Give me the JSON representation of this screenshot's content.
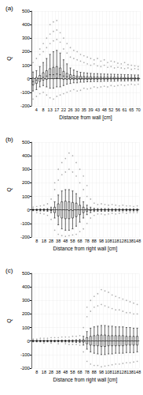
{
  "chart_data": [
    {
      "type": "boxplot",
      "title": "(a)",
      "x_label": "Distance from wall [cm]",
      "y_label": "Q",
      "categories": [
        null,
        "4",
        null,
        "8",
        null,
        "13",
        null,
        "17",
        null,
        "22",
        null,
        "26",
        null,
        "30",
        null,
        "35",
        null,
        "39",
        null,
        "43",
        null,
        "48",
        null,
        "52",
        null,
        "56",
        null,
        "61",
        null,
        "65",
        null,
        "70"
      ],
      "values": [
        [
          -90,
          -45,
          -20,
          5,
          50
        ],
        [
          -80,
          -35,
          -10,
          10,
          60
        ],
        [
          -60,
          -20,
          0,
          25,
          90
        ],
        [
          -50,
          -10,
          10,
          45,
          120
        ],
        [
          -60,
          -5,
          20,
          60,
          150
        ],
        [
          -70,
          0,
          30,
          75,
          180
        ],
        [
          -70,
          0,
          30,
          85,
          200
        ],
        [
          -60,
          5,
          35,
          90,
          210
        ],
        [
          -60,
          0,
          30,
          80,
          190
        ],
        [
          -50,
          -5,
          20,
          55,
          140
        ],
        [
          -40,
          -5,
          15,
          40,
          110
        ],
        [
          -35,
          -5,
          10,
          30,
          80
        ],
        [
          -30,
          -5,
          5,
          25,
          65
        ],
        [
          -30,
          -5,
          5,
          20,
          55
        ],
        [
          -25,
          -5,
          3,
          18,
          48
        ],
        [
          -25,
          -6,
          3,
          17,
          45
        ],
        [
          -22,
          -5,
          2,
          15,
          42
        ],
        [
          -22,
          -5,
          2,
          15,
          40
        ],
        [
          -20,
          -4,
          2,
          14,
          38
        ],
        [
          -20,
          -4,
          2,
          14,
          38
        ],
        [
          -20,
          -4,
          2,
          13,
          36
        ],
        [
          -18,
          -4,
          1,
          12,
          35
        ],
        [
          -18,
          -4,
          1,
          12,
          34
        ],
        [
          -18,
          -3,
          1,
          12,
          34
        ],
        [
          -18,
          -3,
          1,
          12,
          33
        ],
        [
          -16,
          -3,
          1,
          11,
          32
        ],
        [
          -16,
          -3,
          1,
          11,
          32
        ],
        [
          -16,
          -3,
          1,
          10,
          30
        ],
        [
          -15,
          -3,
          1,
          10,
          30
        ],
        [
          -15,
          -3,
          1,
          10,
          29
        ],
        [
          -15,
          -3,
          1,
          10,
          28
        ],
        [
          -14,
          -3,
          1,
          9,
          28
        ]
      ],
      "outliers": [
        [
          120,
          -150
        ],
        [
          150,
          -130
        ],
        [
          180,
          220,
          -110
        ],
        [
          200,
          260,
          -100
        ],
        [
          230,
          300,
          -120
        ],
        [
          260,
          330,
          400,
          -140
        ],
        [
          280,
          350,
          420,
          -150
        ],
        [
          290,
          360,
          430,
          -130
        ],
        [
          270,
          340,
          -120
        ],
        [
          220,
          300,
          -110
        ],
        [
          190,
          260,
          -100
        ],
        [
          160,
          230,
          -90
        ],
        [
          150,
          210,
          -80
        ],
        [
          140,
          200,
          -90
        ],
        [
          130,
          180,
          -85
        ],
        [
          120,
          170,
          -70
        ],
        [
          110,
          160,
          -75
        ],
        [
          100,
          150,
          -70
        ],
        [
          110,
          140,
          -60
        ],
        [
          95,
          150,
          -65
        ],
        [
          90,
          130,
          -60
        ],
        [
          100,
          140,
          -55
        ],
        [
          85,
          120,
          -60
        ],
        [
          90,
          130,
          -50
        ],
        [
          80,
          125,
          -55
        ],
        [
          85,
          115,
          -50
        ],
        [
          80,
          110,
          -45
        ],
        [
          75,
          120,
          -50
        ],
        [
          80,
          105,
          -45
        ],
        [
          70,
          100,
          -40
        ],
        [
          75,
          95,
          -45
        ],
        [
          70,
          90,
          -40
        ]
      ],
      "ylim": [
        -200,
        500
      ],
      "yticks": [
        -200,
        -100,
        0,
        100,
        200,
        300,
        400,
        500
      ],
      "grid": true,
      "color": "#000000"
    },
    {
      "type": "boxplot",
      "title": "(b)",
      "x_label": "Distance from right wall [cm]",
      "y_label": "Q",
      "categories": [
        null,
        "8",
        null,
        "18",
        null,
        "28",
        null,
        "38",
        null,
        "48",
        null,
        "58",
        null,
        "68",
        null,
        "78",
        null,
        "88",
        null,
        "98",
        null,
        "108",
        null,
        "118",
        null,
        "128",
        null,
        "138",
        null,
        "148"
      ],
      "values": [
        [
          -6,
          -1,
          0,
          1,
          6
        ],
        [
          -6,
          -1,
          0,
          1,
          6
        ],
        [
          -8,
          -2,
          0,
          2,
          8
        ],
        [
          -8,
          -2,
          0,
          2,
          8
        ],
        [
          -10,
          -2,
          0,
          2,
          10
        ],
        [
          -20,
          -5,
          0,
          5,
          20
        ],
        [
          -60,
          -20,
          0,
          20,
          60
        ],
        [
          -110,
          -45,
          0,
          45,
          110
        ],
        [
          -140,
          -60,
          0,
          60,
          140
        ],
        [
          -150,
          -65,
          0,
          65,
          150
        ],
        [
          -150,
          -65,
          -5,
          60,
          150
        ],
        [
          -140,
          -60,
          -5,
          55,
          140
        ],
        [
          -120,
          -50,
          0,
          50,
          120
        ],
        [
          -90,
          -35,
          0,
          35,
          90
        ],
        [
          -60,
          -20,
          0,
          20,
          60
        ],
        [
          -35,
          -10,
          0,
          10,
          35
        ],
        [
          -20,
          -5,
          0,
          5,
          20
        ],
        [
          -12,
          -3,
          0,
          3,
          12
        ],
        [
          -10,
          -2,
          0,
          2,
          10
        ],
        [
          -10,
          -2,
          0,
          2,
          10
        ],
        [
          -10,
          -2,
          0,
          2,
          10
        ],
        [
          -10,
          -2,
          0,
          2,
          10
        ],
        [
          -9,
          -2,
          0,
          2,
          9
        ],
        [
          -9,
          -2,
          0,
          2,
          9
        ],
        [
          -9,
          -2,
          0,
          2,
          9
        ],
        [
          -8,
          -2,
          0,
          2,
          8
        ],
        [
          -8,
          -2,
          0,
          2,
          8
        ],
        [
          -8,
          -2,
          0,
          2,
          8
        ],
        [
          -8,
          -2,
          0,
          2,
          8
        ],
        [
          -8,
          -2,
          0,
          2,
          8
        ]
      ],
      "outliers": [
        [
          20
        ],
        [
          25,
          -20
        ],
        [
          30,
          -25
        ],
        [
          35,
          -30
        ],
        [
          45,
          -40
        ],
        [
          80,
          -70
        ],
        [
          150,
          200,
          -150
        ],
        [
          220,
          300,
          -180
        ],
        [
          260,
          350,
          -190
        ],
        [
          280,
          380,
          -195
        ],
        [
          300,
          420,
          -190
        ],
        [
          280,
          400,
          -185
        ],
        [
          250,
          350,
          -180
        ],
        [
          200,
          300,
          -160
        ],
        [
          150,
          250,
          -140
        ],
        [
          100,
          180,
          -100
        ],
        [
          80,
          -60
        ],
        [
          50,
          -40
        ],
        [
          40,
          -30
        ],
        [
          45,
          -30
        ],
        [
          40,
          -35
        ],
        [
          35,
          -30
        ],
        [
          40,
          -25
        ],
        [
          35,
          -30
        ],
        [
          30,
          -25
        ],
        [
          35,
          -20
        ],
        [
          30,
          -25
        ],
        [
          30,
          -20
        ],
        [
          25,
          -20
        ],
        [
          30,
          -20
        ]
      ],
      "ylim": [
        -200,
        500
      ],
      "yticks": [
        -200,
        -100,
        0,
        100,
        200,
        300,
        400,
        500
      ],
      "grid": true,
      "color": "#000000"
    },
    {
      "type": "boxplot",
      "title": "(c)",
      "x_label": "Distance from right wall [cm]",
      "y_label": "Q",
      "categories": [
        null,
        "8",
        null,
        "18",
        null,
        "28",
        null,
        "38",
        null,
        "48",
        null,
        "58",
        null,
        "68",
        null,
        "78",
        null,
        "88",
        null,
        "98",
        null,
        "108",
        null,
        "118",
        null,
        "128",
        null,
        "138",
        null,
        "148"
      ],
      "values": [
        [
          -6,
          -1,
          0,
          1,
          6
        ],
        [
          -6,
          -1,
          0,
          1,
          6
        ],
        [
          -6,
          -1,
          0,
          1,
          6
        ],
        [
          -6,
          -1,
          0,
          1,
          6
        ],
        [
          -6,
          -1,
          0,
          1,
          6
        ],
        [
          -6,
          -1,
          0,
          1,
          6
        ],
        [
          -6,
          -1,
          0,
          1,
          6
        ],
        [
          -6,
          -1,
          0,
          1,
          6
        ],
        [
          -7,
          -1,
          0,
          1,
          7
        ],
        [
          -7,
          -1,
          0,
          1,
          7
        ],
        [
          -8,
          -2,
          0,
          2,
          8
        ],
        [
          -8,
          -2,
          0,
          2,
          8
        ],
        [
          -10,
          -2,
          0,
          2,
          10
        ],
        [
          -12,
          -3,
          0,
          3,
          12
        ],
        [
          -30,
          -8,
          0,
          10,
          35
        ],
        [
          -60,
          -20,
          0,
          25,
          70
        ],
        [
          -80,
          -30,
          0,
          35,
          95
        ],
        [
          -90,
          -35,
          0,
          40,
          105
        ],
        [
          -95,
          -35,
          0,
          45,
          110
        ],
        [
          -100,
          -40,
          0,
          45,
          115
        ],
        [
          -100,
          -40,
          0,
          45,
          115
        ],
        [
          -95,
          -35,
          0,
          40,
          110
        ],
        [
          -95,
          -35,
          0,
          40,
          110
        ],
        [
          -90,
          -35,
          0,
          40,
          105
        ],
        [
          -90,
          -35,
          0,
          40,
          105
        ],
        [
          -90,
          -35,
          0,
          40,
          105
        ],
        [
          -85,
          -30,
          0,
          35,
          100
        ],
        [
          -85,
          -30,
          0,
          35,
          100
        ],
        [
          -85,
          -30,
          0,
          35,
          95
        ],
        [
          -80,
          -30,
          0,
          35,
          95
        ]
      ],
      "outliers": [
        [
          15
        ],
        [
          15
        ],
        [
          20
        ],
        [
          20,
          -15
        ],
        [
          20
        ],
        [
          25,
          -15
        ],
        [
          25
        ],
        [
          25,
          -20
        ],
        [
          30
        ],
        [
          30,
          -20
        ],
        [
          30,
          -25
        ],
        [
          35,
          -25
        ],
        [
          35,
          -25
        ],
        [
          40,
          -30
        ],
        [
          100,
          -80
        ],
        [
          180,
          250,
          -150
        ],
        [
          220,
          300,
          -170
        ],
        [
          250,
          330,
          -180
        ],
        [
          260,
          350,
          -180
        ],
        [
          270,
          380,
          -190
        ],
        [
          260,
          370,
          -185
        ],
        [
          250,
          360,
          -180
        ],
        [
          240,
          340,
          -175
        ],
        [
          230,
          330,
          -170
        ],
        [
          230,
          320,
          -170
        ],
        [
          220,
          310,
          -165
        ],
        [
          210,
          300,
          -160
        ],
        [
          210,
          290,
          -160
        ],
        [
          200,
          280,
          -155
        ],
        [
          200,
          270,
          -150
        ]
      ],
      "ylim": [
        -200,
        500
      ],
      "yticks": [
        -200,
        -100,
        0,
        100,
        200,
        300,
        400,
        500
      ],
      "grid": true,
      "color": "#000000"
    }
  ]
}
